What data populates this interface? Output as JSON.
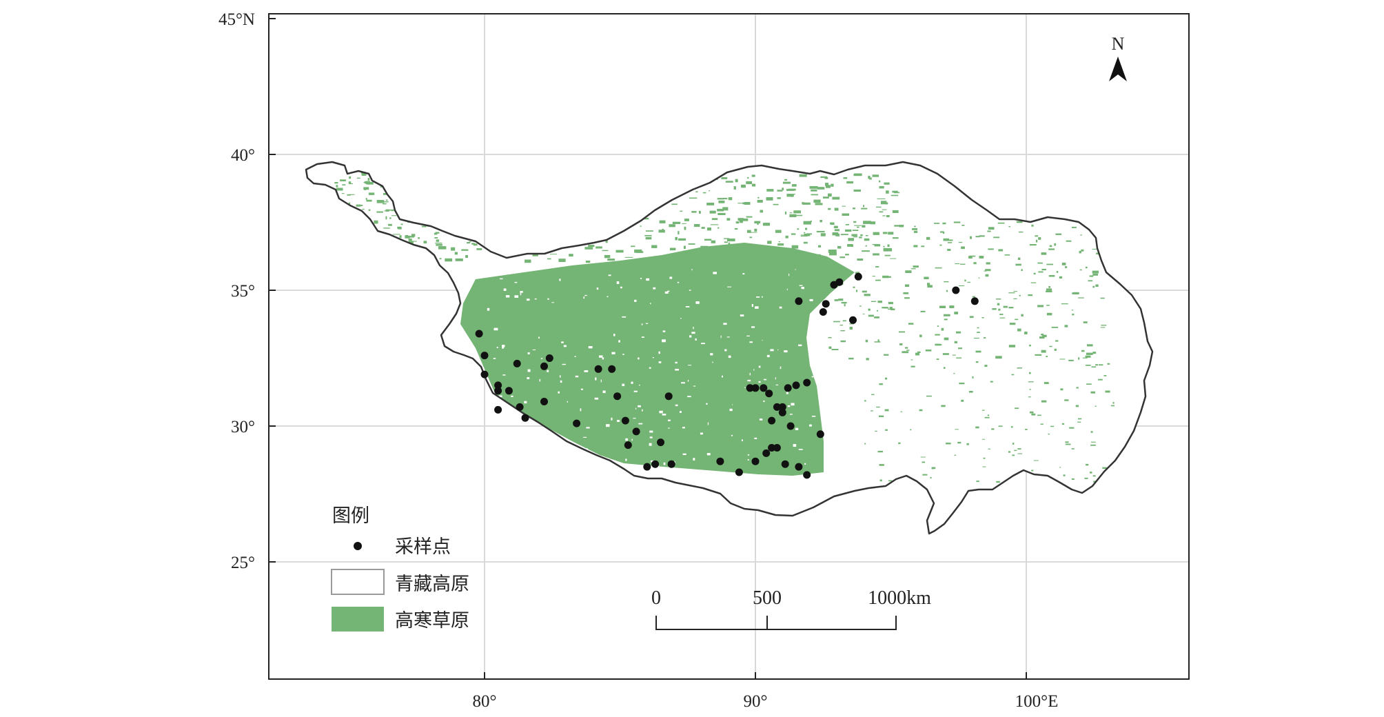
{
  "map": {
    "latitude_labels": [
      "45°N",
      "40°",
      "35°",
      "30°",
      "25°"
    ],
    "longitude_labels": [
      "80°",
      "90°",
      "100°E"
    ],
    "north_label": "N",
    "scale_labels": [
      "0",
      "500",
      "1000km"
    ]
  },
  "legend": {
    "title": "图例",
    "items": [
      {
        "label": "采样点",
        "symbol": "dot"
      },
      {
        "label": "青藏高原",
        "symbol": "outline-box"
      },
      {
        "label": "高寒草原",
        "symbol": "filled-box"
      }
    ]
  },
  "colors": {
    "grassland": "#74b474",
    "plateau_fill": "#ffffff",
    "boundary": "#333333",
    "sample_point": "#111111",
    "grid": "#d9d9d9"
  },
  "sample_points": [
    {
      "lon": 79.8,
      "lat": 33.4
    },
    {
      "lon": 80.0,
      "lat": 32.6
    },
    {
      "lon": 80.0,
      "lat": 31.9
    },
    {
      "lon": 80.5,
      "lat": 31.5
    },
    {
      "lon": 80.5,
      "lat": 31.3
    },
    {
      "lon": 80.9,
      "lat": 31.3
    },
    {
      "lon": 80.5,
      "lat": 30.6
    },
    {
      "lon": 81.2,
      "lat": 32.3
    },
    {
      "lon": 81.3,
      "lat": 30.7
    },
    {
      "lon": 81.5,
      "lat": 30.3
    },
    {
      "lon": 82.2,
      "lat": 32.2
    },
    {
      "lon": 82.4,
      "lat": 32.5
    },
    {
      "lon": 82.2,
      "lat": 30.9
    },
    {
      "lon": 83.4,
      "lat": 30.1
    },
    {
      "lon": 84.2,
      "lat": 32.1
    },
    {
      "lon": 84.7,
      "lat": 32.1
    },
    {
      "lon": 84.9,
      "lat": 31.1
    },
    {
      "lon": 85.2,
      "lat": 30.2
    },
    {
      "lon": 85.6,
      "lat": 29.8
    },
    {
      "lon": 85.3,
      "lat": 29.3
    },
    {
      "lon": 86.0,
      "lat": 28.5
    },
    {
      "lon": 86.3,
      "lat": 28.6
    },
    {
      "lon": 86.5,
      "lat": 29.4
    },
    {
      "lon": 86.9,
      "lat": 28.6
    },
    {
      "lon": 86.8,
      "lat": 31.1
    },
    {
      "lon": 88.7,
      "lat": 28.7
    },
    {
      "lon": 89.4,
      "lat": 28.3
    },
    {
      "lon": 89.8,
      "lat": 31.4
    },
    {
      "lon": 90.0,
      "lat": 31.4
    },
    {
      "lon": 90.3,
      "lat": 31.4
    },
    {
      "lon": 90.0,
      "lat": 28.7
    },
    {
      "lon": 90.4,
      "lat": 29.0
    },
    {
      "lon": 90.6,
      "lat": 29.2
    },
    {
      "lon": 90.8,
      "lat": 29.2
    },
    {
      "lon": 90.5,
      "lat": 31.2
    },
    {
      "lon": 90.6,
      "lat": 30.2
    },
    {
      "lon": 90.8,
      "lat": 30.7
    },
    {
      "lon": 91.0,
      "lat": 30.7
    },
    {
      "lon": 91.0,
      "lat": 30.5
    },
    {
      "lon": 91.1,
      "lat": 28.6
    },
    {
      "lon": 91.2,
      "lat": 31.4
    },
    {
      "lon": 91.3,
      "lat": 30.0
    },
    {
      "lon": 91.5,
      "lat": 31.5
    },
    {
      "lon": 91.6,
      "lat": 28.5
    },
    {
      "lon": 91.9,
      "lat": 31.6
    },
    {
      "lon": 91.9,
      "lat": 28.2
    },
    {
      "lon": 92.4,
      "lat": 29.7
    },
    {
      "lon": 91.6,
      "lat": 34.6
    },
    {
      "lon": 92.5,
      "lat": 34.2
    },
    {
      "lon": 92.6,
      "lat": 34.5
    },
    {
      "lon": 92.9,
      "lat": 35.2
    },
    {
      "lon": 93.1,
      "lat": 35.3
    },
    {
      "lon": 93.6,
      "lat": 33.9
    },
    {
      "lon": 93.8,
      "lat": 35.5
    },
    {
      "lon": 97.4,
      "lat": 35.0
    },
    {
      "lon": 98.1,
      "lat": 34.6
    }
  ]
}
